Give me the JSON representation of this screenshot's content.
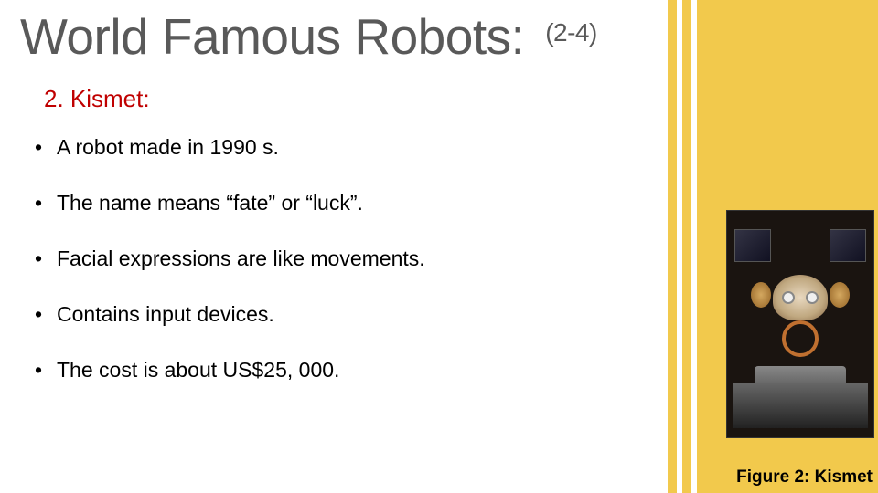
{
  "title_main": "World Famous Robots:",
  "title_suffix": "(2-4)",
  "subtitle": "2. Kismet:",
  "bullets": [
    "A robot  made in  1990 s.",
    "The name means “fate” or  “luck”.",
    "Facial expressions are like movements.",
    "Contains input devices.",
    "The cost is about US$25, 000."
  ],
  "caption": "Figure 2: Kismet",
  "colors": {
    "accent": "#f2c94c",
    "title": "#595959",
    "subtitle": "#c00000",
    "body_text": "#000000",
    "background": "#ffffff"
  },
  "typography": {
    "title_fontsize": 55,
    "suffix_fontsize": 28,
    "subtitle_fontsize": 26,
    "bullet_fontsize": 23,
    "caption_fontsize": 19,
    "caption_weight": "bold"
  },
  "layout": {
    "slide_width": 960,
    "slide_height": 540,
    "right_panel_width": 168,
    "stripe_block_width": 62,
    "figure_width": 162,
    "figure_height": 250
  }
}
